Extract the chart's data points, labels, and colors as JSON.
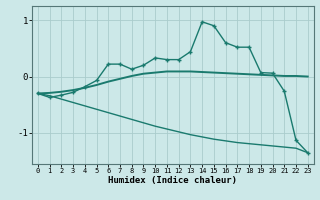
{
  "title": "",
  "xlabel": "Humidex (Indice chaleur)",
  "ylabel": "",
  "background_color": "#cce8e8",
  "line_color": "#1a7a6e",
  "grid_color": "#aacccc",
  "ylim": [
    -1.55,
    1.25
  ],
  "xlim": [
    -0.5,
    23.5
  ],
  "x": [
    0,
    1,
    2,
    3,
    4,
    5,
    6,
    7,
    8,
    9,
    10,
    11,
    12,
    13,
    14,
    15,
    16,
    17,
    18,
    19,
    20,
    21,
    22,
    23
  ],
  "line1": [
    -0.3,
    -0.37,
    -0.33,
    -0.28,
    -0.18,
    -0.07,
    0.22,
    0.22,
    0.13,
    0.2,
    0.33,
    0.3,
    0.3,
    0.44,
    0.97,
    0.9,
    0.6,
    0.52,
    0.52,
    0.07,
    0.06,
    -0.26,
    -1.13,
    -1.35
  ],
  "line2": [
    -0.3,
    -0.29,
    -0.27,
    -0.24,
    -0.2,
    -0.15,
    -0.09,
    -0.04,
    0.01,
    0.05,
    0.07,
    0.09,
    0.09,
    0.09,
    0.08,
    0.07,
    0.06,
    0.05,
    0.04,
    0.03,
    0.02,
    0.01,
    0.01,
    0.0
  ],
  "line3": [
    -0.3,
    -0.34,
    -0.4,
    -0.46,
    -0.52,
    -0.58,
    -0.64,
    -0.7,
    -0.76,
    -0.82,
    -0.88,
    -0.93,
    -0.98,
    -1.03,
    -1.07,
    -1.11,
    -1.14,
    -1.17,
    -1.19,
    -1.21,
    -1.23,
    -1.25,
    -1.27,
    -1.35
  ],
  "yticks": [
    -1,
    0,
    1
  ],
  "xticks": [
    0,
    1,
    2,
    3,
    4,
    5,
    6,
    7,
    8,
    9,
    10,
    11,
    12,
    13,
    14,
    15,
    16,
    17,
    18,
    19,
    20,
    21,
    22,
    23
  ]
}
